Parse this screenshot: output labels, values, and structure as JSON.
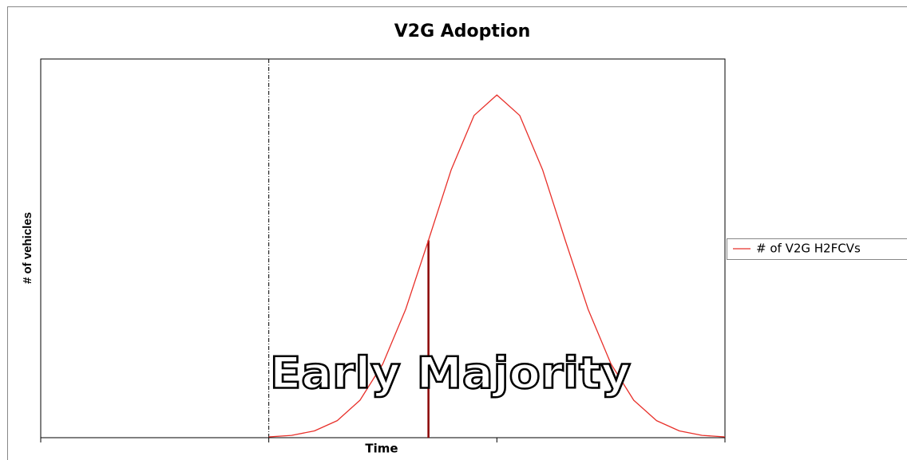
{
  "chart_data": {
    "type": "line",
    "title": "V2G Adoption",
    "xlabel": "Time",
    "ylabel": "# of vehicles",
    "x": [
      1.0,
      1.1,
      1.2,
      1.3,
      1.4,
      1.5,
      1.6,
      1.7,
      1.8,
      1.9,
      2.0,
      2.1,
      2.2,
      2.3,
      2.4,
      2.5,
      2.6,
      2.7,
      2.8,
      2.9,
      3.0
    ],
    "series": [
      {
        "name": "# of V2G H2FCVs",
        "color": "#e8302a",
        "values": [
          0.2,
          0.6,
          1.8,
          4.5,
          9.9,
          19.5,
          33.9,
          52.1,
          70.8,
          85.1,
          90.5,
          85.1,
          70.8,
          52.1,
          33.9,
          19.5,
          9.9,
          4.5,
          1.8,
          0.6,
          0.2
        ]
      }
    ],
    "xlim": [
      0,
      3
    ],
    "xticks": [
      0,
      1,
      2,
      3
    ],
    "ylim": [
      0,
      100
    ],
    "vlines": [
      {
        "x": 1.0,
        "style": "dashed",
        "color": "#000000"
      },
      {
        "x": 1.7,
        "y": 52.1,
        "style": "solid",
        "color": "#8b0000"
      }
    ],
    "annotation": "Early Majority",
    "legend": "right",
    "grid": false
  }
}
